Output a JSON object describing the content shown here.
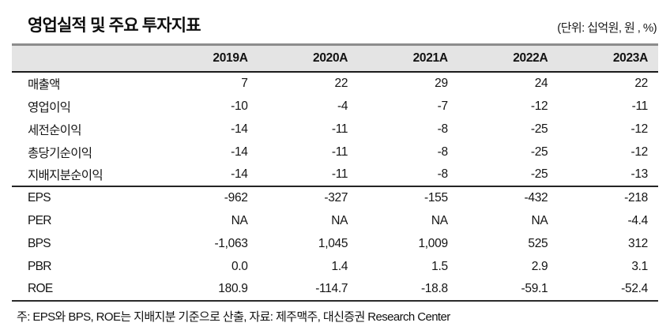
{
  "header": {
    "title": "영업실적 및 주요 투자지표",
    "unit_note": "(단위: 십억원, 원 , %)"
  },
  "table": {
    "columns": [
      "2019A",
      "2020A",
      "2021A",
      "2022A",
      "2023A"
    ],
    "sections": [
      {
        "name": "earnings",
        "rows": [
          {
            "label": "매출액",
            "values": [
              "7",
              "22",
              "29",
              "24",
              "22"
            ]
          },
          {
            "label": "영업이익",
            "values": [
              "-10",
              "-4",
              "-7",
              "-12",
              "-11"
            ]
          },
          {
            "label": "세전순이익",
            "values": [
              "-14",
              "-11",
              "-8",
              "-25",
              "-12"
            ]
          },
          {
            "label": "총당기순이익",
            "values": [
              "-14",
              "-11",
              "-8",
              "-25",
              "-12"
            ]
          },
          {
            "label": "지배지분순이익",
            "values": [
              "-14",
              "-11",
              "-8",
              "-25",
              "-13"
            ]
          }
        ]
      },
      {
        "name": "investment-metrics",
        "rows": [
          {
            "label": "EPS",
            "values": [
              "-962",
              "-327",
              "-155",
              "-432",
              "-218"
            ]
          },
          {
            "label": "PER",
            "values": [
              "NA",
              "NA",
              "NA",
              "NA",
              "-4.4"
            ]
          },
          {
            "label": "BPS",
            "values": [
              "-1,063",
              "1,045",
              "1,009",
              "525",
              "312"
            ]
          },
          {
            "label": "PBR",
            "values": [
              "0.0",
              "1.4",
              "1.5",
              "2.9",
              "3.1"
            ]
          },
          {
            "label": "ROE",
            "values": [
              "180.9",
              "-114.7",
              "-18.8",
              "-59.1",
              "-52.4"
            ]
          }
        ]
      }
    ]
  },
  "footnote": "주: EPS와 BPS, ROE는 지배지분 기준으로 산출, 자료: 제주맥주, 대신증권 Research Center",
  "colors": {
    "header_bg": "#e4e4e4",
    "title_rule": "#8c8c8c",
    "border_dark": "#1b1b1b",
    "text": "#121212"
  }
}
